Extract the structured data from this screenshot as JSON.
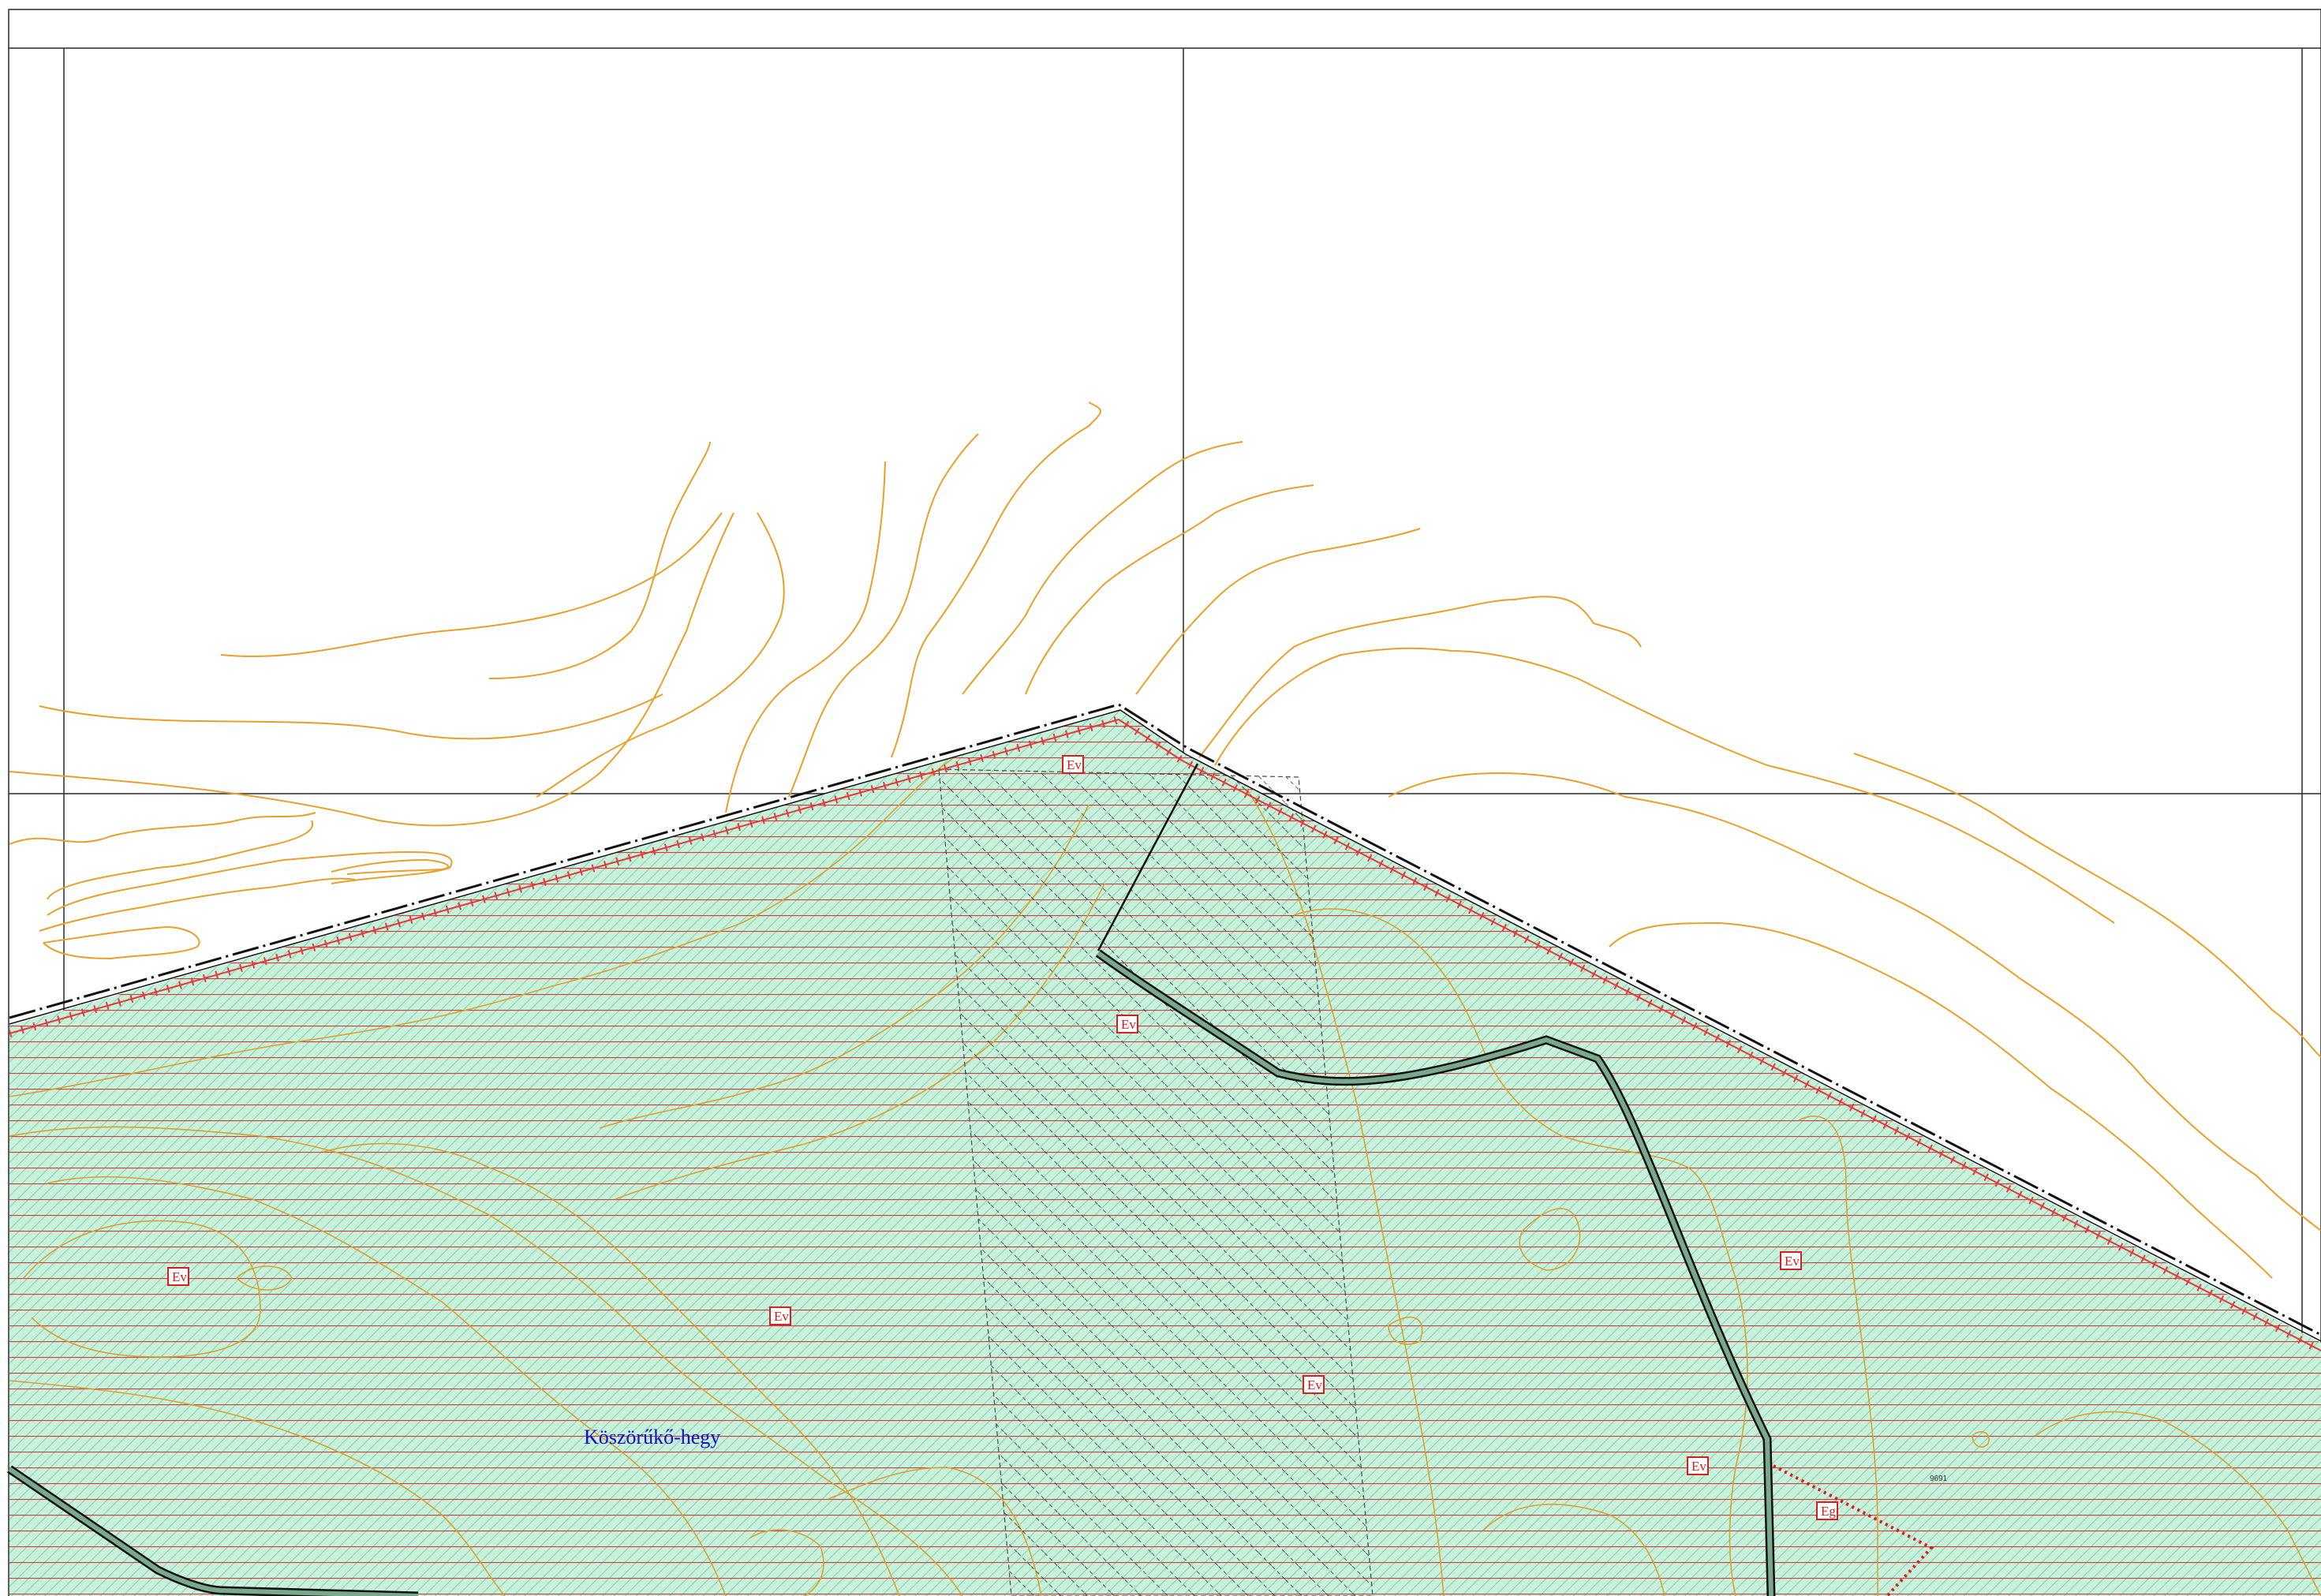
{
  "map": {
    "place_name": "Köszörűkő-hegy",
    "land_use_labels": [
      "Ev",
      "Ev",
      "Ev",
      "Ev",
      "Ev",
      "Ev",
      "Ev",
      "Eg"
    ],
    "small_label": "9691",
    "colors": {
      "protected_fill": "#c8f0dc",
      "hatch_green": "#7fd3a8",
      "red_lines": "#d23c3c",
      "contours": "#e8a02a",
      "boundary": "#111111",
      "road": "#7aa88c",
      "label_text": "#1010c8",
      "badge_text": "#d62020"
    },
    "icons": [
      "zone-badge-icon"
    ]
  }
}
